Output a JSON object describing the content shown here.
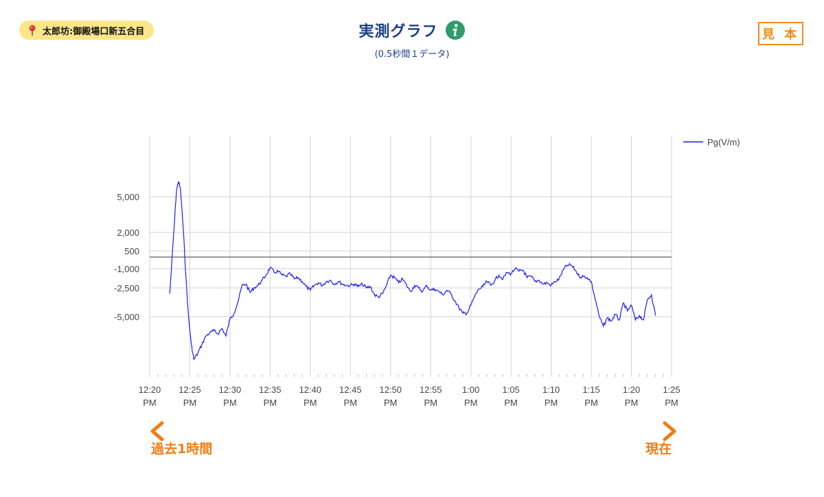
{
  "location": {
    "label": "太郎坊:御殿場口新五合目",
    "icon": "map-pin-icon"
  },
  "header": {
    "title": "実測グラフ",
    "subtitle": "(0.5秒間１データ)",
    "info_icon": "info-icon"
  },
  "badge": {
    "label": "見 本"
  },
  "timeline": {
    "left_label": "過去1時間",
    "right_label": "現在"
  },
  "colors": {
    "series": "#1a1aff",
    "title": "#1b3f86",
    "accent": "#f08a1c",
    "pill": "#fbe68a"
  },
  "chart_data": {
    "type": "line",
    "title": "",
    "xlabel": "",
    "ylabel": "",
    "x_ticks": [
      [
        "12:20",
        "PM"
      ],
      [
        "12:25",
        "PM"
      ],
      [
        "12:30",
        "PM"
      ],
      [
        "12:35",
        "PM"
      ],
      [
        "12:40",
        "PM"
      ],
      [
        "12:45",
        "PM"
      ],
      [
        "12:50",
        "PM"
      ],
      [
        "12:55",
        "PM"
      ],
      [
        "1:00",
        "PM"
      ],
      [
        "1:05",
        "PM"
      ],
      [
        "1:10",
        "PM"
      ],
      [
        "1:15",
        "PM"
      ],
      [
        "1:20",
        "PM"
      ],
      [
        "1:25",
        "PM"
      ]
    ],
    "xlim": [
      "12:20",
      "13:25"
    ],
    "y_ticks": [
      {
        "value": 5000,
        "label": "5,000"
      },
      {
        "value": 2000,
        "label": "2,000"
      },
      {
        "value": 500,
        "label": "500"
      },
      {
        "value": -1000,
        "label": "-1,000"
      },
      {
        "value": -2500,
        "label": "-2,500"
      },
      {
        "value": -5000,
        "label": "-5,000"
      }
    ],
    "zero_line": true,
    "grid": true,
    "legend_position": "top-right",
    "series": [
      {
        "name": "Pg(V/m)",
        "color": "#1a1aff",
        "points": [
          [
            "12:22:30",
            -3000
          ],
          [
            "12:23:00",
            2000
          ],
          [
            "12:23:20",
            5500
          ],
          [
            "12:23:35",
            6300
          ],
          [
            "12:23:50",
            5600
          ],
          [
            "12:24:10",
            2500
          ],
          [
            "12:24:30",
            -1500
          ],
          [
            "12:24:50",
            -5000
          ],
          [
            "12:25:10",
            -7500
          ],
          [
            "12:25:30",
            -9000
          ],
          [
            "12:26:00",
            -8400
          ],
          [
            "12:26:30",
            -7600
          ],
          [
            "12:27:00",
            -6800
          ],
          [
            "12:27:30",
            -6500
          ],
          [
            "12:28:00",
            -6300
          ],
          [
            "12:28:30",
            -6600
          ],
          [
            "12:29:00",
            -6100
          ],
          [
            "12:29:30",
            -6800
          ],
          [
            "12:30:00",
            -5200
          ],
          [
            "12:30:30",
            -4700
          ],
          [
            "12:31:00",
            -3700
          ],
          [
            "12:31:30",
            -2300
          ],
          [
            "12:32:00",
            -2200
          ],
          [
            "12:32:30",
            -2900
          ],
          [
            "12:33:00",
            -2500
          ],
          [
            "12:33:30",
            -2300
          ],
          [
            "12:34:00",
            -1900
          ],
          [
            "12:34:30",
            -1500
          ],
          [
            "12:35:00",
            -900
          ],
          [
            "12:35:30",
            -1300
          ],
          [
            "12:36:00",
            -1200
          ],
          [
            "12:36:30",
            -1500
          ],
          [
            "12:37:00",
            -1600
          ],
          [
            "12:37:30",
            -1400
          ],
          [
            "12:38:00",
            -1800
          ],
          [
            "12:38:30",
            -1700
          ],
          [
            "12:39:00",
            -2000
          ],
          [
            "12:39:30",
            -2400
          ],
          [
            "12:40:00",
            -2700
          ],
          [
            "12:40:30",
            -2300
          ],
          [
            "12:41:00",
            -2100
          ],
          [
            "12:41:30",
            -2300
          ],
          [
            "12:42:00",
            -2000
          ],
          [
            "12:42:30",
            -1900
          ],
          [
            "12:43:00",
            -2200
          ],
          [
            "12:43:30",
            -2000
          ],
          [
            "12:44:00",
            -2200
          ],
          [
            "12:44:30",
            -2300
          ],
          [
            "12:45:00",
            -2300
          ],
          [
            "12:45:30",
            -2200
          ],
          [
            "12:46:00",
            -2400
          ],
          [
            "12:46:30",
            -2200
          ],
          [
            "12:47:00",
            -2500
          ],
          [
            "12:47:30",
            -2400
          ],
          [
            "12:48:00",
            -3100
          ],
          [
            "12:48:30",
            -3300
          ],
          [
            "12:49:00",
            -3000
          ],
          [
            "12:49:30",
            -2300
          ],
          [
            "12:50:00",
            -1500
          ],
          [
            "12:50:30",
            -1700
          ],
          [
            "12:51:00",
            -2100
          ],
          [
            "12:51:30",
            -1800
          ],
          [
            "12:52:00",
            -2300
          ],
          [
            "12:52:30",
            -2800
          ],
          [
            "12:53:00",
            -2300
          ],
          [
            "12:53:30",
            -2500
          ],
          [
            "12:54:00",
            -2800
          ],
          [
            "12:54:30",
            -2300
          ],
          [
            "12:55:00",
            -2700
          ],
          [
            "12:55:30",
            -2600
          ],
          [
            "12:56:00",
            -2800
          ],
          [
            "12:56:30",
            -3100
          ],
          [
            "12:57:00",
            -2700
          ],
          [
            "12:57:30",
            -3000
          ],
          [
            "12:58:00",
            -3600
          ],
          [
            "12:58:30",
            -4200
          ],
          [
            "12:59:00",
            -4700
          ],
          [
            "12:59:30",
            -4700
          ],
          [
            "13:00:00",
            -4000
          ],
          [
            "13:00:30",
            -3200
          ],
          [
            "13:01:00",
            -2600
          ],
          [
            "13:01:30",
            -2400
          ],
          [
            "13:02:00",
            -2000
          ],
          [
            "13:02:30",
            -2300
          ],
          [
            "13:03:00",
            -1900
          ],
          [
            "13:03:30",
            -1500
          ],
          [
            "13:04:00",
            -1800
          ],
          [
            "13:04:30",
            -1300
          ],
          [
            "13:05:00",
            -1400
          ],
          [
            "13:05:30",
            -1000
          ],
          [
            "13:06:00",
            -1200
          ],
          [
            "13:06:30",
            -1100
          ],
          [
            "13:07:00",
            -1700
          ],
          [
            "13:07:30",
            -1600
          ],
          [
            "13:08:00",
            -2000
          ],
          [
            "13:08:30",
            -1900
          ],
          [
            "13:09:00",
            -2200
          ],
          [
            "13:09:30",
            -2100
          ],
          [
            "13:10:00",
            -2300
          ],
          [
            "13:10:30",
            -2000
          ],
          [
            "13:11:00",
            -1800
          ],
          [
            "13:11:30",
            -1100
          ],
          [
            "13:12:00",
            -700
          ],
          [
            "13:12:30",
            -700
          ],
          [
            "13:13:00",
            -1100
          ],
          [
            "13:13:30",
            -1600
          ],
          [
            "13:14:00",
            -1600
          ],
          [
            "13:14:30",
            -1700
          ],
          [
            "13:15:00",
            -2000
          ],
          [
            "13:15:30",
            -3500
          ],
          [
            "13:16:00",
            -5000
          ],
          [
            "13:16:30",
            -5900
          ],
          [
            "13:17:00",
            -5100
          ],
          [
            "13:17:30",
            -5400
          ],
          [
            "13:18:00",
            -4800
          ],
          [
            "13:18:30",
            -5300
          ],
          [
            "13:19:00",
            -3800
          ],
          [
            "13:19:30",
            -4500
          ],
          [
            "13:20:00",
            -4000
          ],
          [
            "13:20:30",
            -5300
          ],
          [
            "13:21:00",
            -4900
          ],
          [
            "13:21:30",
            -5300
          ],
          [
            "13:22:00",
            -3500
          ],
          [
            "13:22:30",
            -3100
          ],
          [
            "13:23:00",
            -4900
          ]
        ]
      }
    ]
  }
}
